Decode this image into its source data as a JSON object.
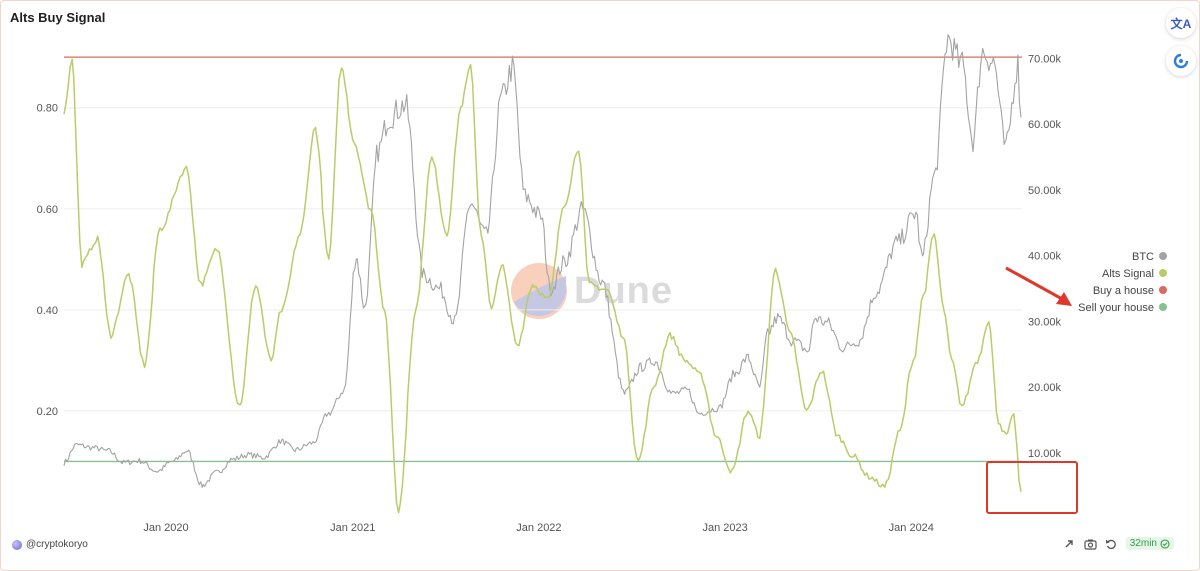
{
  "title": "Alts Buy Signal",
  "author": "@cryptokoryo",
  "refresh_label": "32min",
  "watermark": "Dune",
  "side_tools": [
    "translate-icon",
    "assistant-icon"
  ],
  "footer_icons": [
    "share-icon",
    "camera-icon",
    "undo-icon"
  ],
  "chart_data": {
    "type": "line",
    "x_axis": {
      "ticks": [
        "Jan 2020",
        "Jan 2021",
        "Jan 2022",
        "Jan 2023",
        "Jan 2024"
      ],
      "range": [
        "2019-06-15",
        "2024-08-05"
      ]
    },
    "y_left": {
      "range": [
        0,
        0.93
      ],
      "ticks": [
        {
          "v": 0.2,
          "label": "0.20"
        },
        {
          "v": 0.4,
          "label": "0.40"
        },
        {
          "v": 0.6,
          "label": "0.60"
        },
        {
          "v": 0.8,
          "label": "0.80"
        }
      ]
    },
    "y_right": {
      "range": [
        1000,
        72500
      ],
      "ticks": [
        {
          "v": 10000,
          "label": "10.00k"
        },
        {
          "v": 20000,
          "label": "20.00k"
        },
        {
          "v": 30000,
          "label": "30.00k"
        },
        {
          "v": 40000,
          "label": "40.00k"
        },
        {
          "v": 50000,
          "label": "50.00k"
        },
        {
          "v": 60000,
          "label": "60.00k"
        },
        {
          "v": 70000,
          "label": "70.00k"
        }
      ]
    },
    "legend_position": "right",
    "grid": "horizontal",
    "series": [
      {
        "name": "BTC",
        "axis": "right",
        "color": "#a3a3a3",
        "points": [
          [
            "2019-06-15",
            8500
          ],
          [
            "2019-07-10",
            11200
          ],
          [
            "2019-08-10",
            10800
          ],
          [
            "2019-09-10",
            10300
          ],
          [
            "2019-10-10",
            8500
          ],
          [
            "2019-11-10",
            8800
          ],
          [
            "2019-12-15",
            7200
          ],
          [
            "2020-01-15",
            8700
          ],
          [
            "2020-02-12",
            10300
          ],
          [
            "2020-03-12",
            5000
          ],
          [
            "2020-04-10",
            7000
          ],
          [
            "2020-05-10",
            9000
          ],
          [
            "2020-06-10",
            9700
          ],
          [
            "2020-07-10",
            9300
          ],
          [
            "2020-08-15",
            11800
          ],
          [
            "2020-09-10",
            10400
          ],
          [
            "2020-10-15",
            11500
          ],
          [
            "2020-11-15",
            16000
          ],
          [
            "2020-12-15",
            19500
          ],
          [
            "2021-01-08",
            40000
          ],
          [
            "2021-01-25",
            32000
          ],
          [
            "2021-02-20",
            56000
          ],
          [
            "2021-03-13",
            61000
          ],
          [
            "2021-04-14",
            63000
          ],
          [
            "2021-05-20",
            37000
          ],
          [
            "2021-06-20",
            35000
          ],
          [
            "2021-07-20",
            30000
          ],
          [
            "2021-08-20",
            48000
          ],
          [
            "2021-09-20",
            43000
          ],
          [
            "2021-10-20",
            64000
          ],
          [
            "2021-11-10",
            68500
          ],
          [
            "2021-12-05",
            49000
          ],
          [
            "2022-01-05",
            46000
          ],
          [
            "2022-01-24",
            35000
          ],
          [
            "2022-02-20",
            39000
          ],
          [
            "2022-03-28",
            47000
          ],
          [
            "2022-05-05",
            36000
          ],
          [
            "2022-06-18",
            19000
          ],
          [
            "2022-07-20",
            23000
          ],
          [
            "2022-08-15",
            24000
          ],
          [
            "2022-09-20",
            19000
          ],
          [
            "2022-10-20",
            19500
          ],
          [
            "2022-11-10",
            16000
          ],
          [
            "2022-12-20",
            16800
          ],
          [
            "2023-01-20",
            22000
          ],
          [
            "2023-02-15",
            24500
          ],
          [
            "2023-03-10",
            20000
          ],
          [
            "2023-03-25",
            28000
          ],
          [
            "2023-04-14",
            30500
          ],
          [
            "2023-05-15",
            27000
          ],
          [
            "2023-06-15",
            25500
          ],
          [
            "2023-06-25",
            30500
          ],
          [
            "2023-07-20",
            29800
          ],
          [
            "2023-08-20",
            26000
          ],
          [
            "2023-09-20",
            27000
          ],
          [
            "2023-10-25",
            34500
          ],
          [
            "2023-12-05",
            42000
          ],
          [
            "2024-01-10",
            46500
          ],
          [
            "2024-01-23",
            39500
          ],
          [
            "2024-02-15",
            52000
          ],
          [
            "2024-03-13",
            73000
          ],
          [
            "2024-04-10",
            69000
          ],
          [
            "2024-05-01",
            57500
          ],
          [
            "2024-05-20",
            71000
          ],
          [
            "2024-06-10",
            69500
          ],
          [
            "2024-07-05",
            56500
          ],
          [
            "2024-07-28",
            69000
          ],
          [
            "2024-08-03",
            61000
          ]
        ]
      },
      {
        "name": "Alts Signal",
        "axis": "left",
        "color": "#b9cc68",
        "points": [
          [
            "2019-06-15",
            0.79
          ],
          [
            "2019-07-01",
            0.9
          ],
          [
            "2019-07-20",
            0.49
          ],
          [
            "2019-08-20",
            0.54
          ],
          [
            "2019-09-15",
            0.35
          ],
          [
            "2019-10-20",
            0.47
          ],
          [
            "2019-11-20",
            0.29
          ],
          [
            "2019-12-20",
            0.56
          ],
          [
            "2020-02-10",
            0.68
          ],
          [
            "2020-03-10",
            0.45
          ],
          [
            "2020-04-10",
            0.52
          ],
          [
            "2020-05-25",
            0.21
          ],
          [
            "2020-06-25",
            0.45
          ],
          [
            "2020-07-25",
            0.3
          ],
          [
            "2020-08-15",
            0.4
          ],
          [
            "2020-09-20",
            0.55
          ],
          [
            "2020-10-20",
            0.76
          ],
          [
            "2020-11-15",
            0.5
          ],
          [
            "2020-12-10",
            0.88
          ],
          [
            "2021-01-05",
            0.73
          ],
          [
            "2021-02-05",
            0.6
          ],
          [
            "2021-03-05",
            0.4
          ],
          [
            "2021-04-01",
            0.0
          ],
          [
            "2021-05-05",
            0.4
          ],
          [
            "2021-06-05",
            0.7
          ],
          [
            "2021-07-05",
            0.55
          ],
          [
            "2021-08-01",
            0.8
          ],
          [
            "2021-08-20",
            0.88
          ],
          [
            "2021-09-10",
            0.55
          ],
          [
            "2021-09-30",
            0.4
          ],
          [
            "2021-10-20",
            0.49
          ],
          [
            "2021-11-20",
            0.33
          ],
          [
            "2021-12-20",
            0.45
          ],
          [
            "2022-01-20",
            0.42
          ],
          [
            "2022-02-20",
            0.61
          ],
          [
            "2022-03-20",
            0.72
          ],
          [
            "2022-04-10",
            0.45
          ],
          [
            "2022-05-15",
            0.44
          ],
          [
            "2022-06-15",
            0.35
          ],
          [
            "2022-07-15",
            0.1
          ],
          [
            "2022-08-15",
            0.25
          ],
          [
            "2022-09-15",
            0.35
          ],
          [
            "2022-10-15",
            0.3
          ],
          [
            "2022-11-15",
            0.27
          ],
          [
            "2022-12-15",
            0.15
          ],
          [
            "2023-01-15",
            0.08
          ],
          [
            "2023-02-15",
            0.2
          ],
          [
            "2023-03-10",
            0.15
          ],
          [
            "2023-04-10",
            0.48
          ],
          [
            "2023-05-10",
            0.35
          ],
          [
            "2023-06-10",
            0.2
          ],
          [
            "2023-07-10",
            0.28
          ],
          [
            "2023-08-10",
            0.15
          ],
          [
            "2023-09-10",
            0.11
          ],
          [
            "2023-10-10",
            0.07
          ],
          [
            "2023-11-10",
            0.05
          ],
          [
            "2023-12-10",
            0.16
          ],
          [
            "2024-01-05",
            0.3
          ],
          [
            "2024-01-25",
            0.43
          ],
          [
            "2024-02-15",
            0.55
          ],
          [
            "2024-03-05",
            0.4
          ],
          [
            "2024-03-20",
            0.3
          ],
          [
            "2024-04-10",
            0.21
          ],
          [
            "2024-05-10",
            0.3
          ],
          [
            "2024-06-01",
            0.38
          ],
          [
            "2024-06-20",
            0.18
          ],
          [
            "2024-07-05",
            0.15
          ],
          [
            "2024-07-20",
            0.19
          ],
          [
            "2024-08-03",
            0.04
          ]
        ]
      },
      {
        "name": "Buy a house",
        "axis": "left",
        "color": "#d86a5f",
        "constant": 0.9
      },
      {
        "name": "Sell your house",
        "axis": "left",
        "color": "#86c18f",
        "constant": 0.1
      }
    ]
  }
}
